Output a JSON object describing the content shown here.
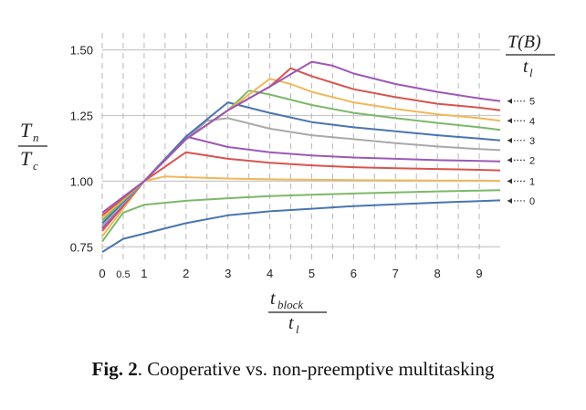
{
  "caption": {
    "label": "Fig. 2",
    "text": ". Cooperative vs. non-preemptive multitasking"
  },
  "chart_data": {
    "type": "line",
    "x_axis": {
      "label_num": "t",
      "label_num_sub": "block",
      "label_den": "t",
      "label_den_sub": "l",
      "ticks": [
        0,
        0.5,
        1,
        2,
        3,
        4,
        5,
        6,
        7,
        8,
        9
      ],
      "tick_labels": [
        "0",
        "0.5",
        "1",
        "2",
        "3",
        "4",
        "5",
        "6",
        "7",
        "8",
        "9"
      ],
      "range": [
        0,
        9.5
      ],
      "dashed_gridlines": [
        0,
        0.5,
        1,
        1.5,
        2,
        2.5,
        3,
        3.5,
        4,
        4.5,
        5,
        5.5,
        6,
        6.5,
        7,
        7.5,
        8,
        8.5,
        9
      ]
    },
    "y_axis": {
      "label_num": "T",
      "label_num_sub": "n",
      "label_den": "T",
      "label_den_sub": "c",
      "ticks": [
        0.75,
        1.0,
        1.25,
        1.5
      ],
      "tick_labels": [
        "0.75",
        "1.00",
        "1.25",
        "1.50"
      ],
      "range": [
        0.73,
        1.53
      ]
    },
    "legend_title": {
      "num": "T(B)",
      "den": "t",
      "den_sub": "l"
    },
    "right_labels": [
      {
        "text": "5",
        "y": 1.305
      },
      {
        "text": "4",
        "y": 1.23
      },
      {
        "text": "3",
        "y": 1.155
      },
      {
        "text": "2",
        "y": 1.08
      },
      {
        "text": "1",
        "y": 1.0
      },
      {
        "text": "0",
        "y": 0.925
      }
    ],
    "series": [
      {
        "color": "#4a74b0",
        "points": [
          [
            0,
            0.73
          ],
          [
            0.5,
            0.78
          ],
          [
            1,
            0.8
          ],
          [
            2,
            0.84
          ],
          [
            3,
            0.87
          ],
          [
            4,
            0.885
          ],
          [
            5,
            0.895
          ],
          [
            6,
            0.905
          ],
          [
            7,
            0.912
          ],
          [
            8,
            0.918
          ],
          [
            9,
            0.924
          ],
          [
            9.5,
            0.927
          ]
        ]
      },
      {
        "color": "#7cb86a",
        "points": [
          [
            0,
            0.77
          ],
          [
            0.5,
            0.88
          ],
          [
            1,
            0.91
          ],
          [
            2,
            0.925
          ],
          [
            3,
            0.935
          ],
          [
            4,
            0.943
          ],
          [
            5,
            0.948
          ],
          [
            6,
            0.953
          ],
          [
            7,
            0.957
          ],
          [
            8,
            0.961
          ],
          [
            9,
            0.964
          ],
          [
            9.5,
            0.966
          ]
        ]
      },
      {
        "color": "#f0b85a",
        "points": [
          [
            0,
            0.79
          ],
          [
            1,
            1.0
          ],
          [
            1.5,
            1.018
          ],
          [
            2,
            1.015
          ],
          [
            3,
            1.01
          ],
          [
            4,
            1.007
          ],
          [
            5,
            1.005
          ],
          [
            6,
            1.004
          ],
          [
            7,
            1.003
          ],
          [
            8,
            1.002
          ],
          [
            9,
            1.002
          ],
          [
            9.5,
            1.001
          ]
        ]
      },
      {
        "color": "#d9534f",
        "points": [
          [
            0,
            0.81
          ],
          [
            1,
            1.0
          ],
          [
            2,
            1.11
          ],
          [
            3,
            1.085
          ],
          [
            4,
            1.07
          ],
          [
            5,
            1.06
          ],
          [
            6,
            1.053
          ],
          [
            7,
            1.049
          ],
          [
            8,
            1.046
          ],
          [
            9,
            1.043
          ],
          [
            9.5,
            1.041
          ]
        ]
      },
      {
        "color": "#9b59b6",
        "points": [
          [
            0,
            0.82
          ],
          [
            1,
            1.0
          ],
          [
            2,
            1.17
          ],
          [
            3,
            1.13
          ],
          [
            4,
            1.11
          ],
          [
            5,
            1.098
          ],
          [
            6,
            1.09
          ],
          [
            7,
            1.085
          ],
          [
            8,
            1.08
          ],
          [
            9,
            1.077
          ],
          [
            9.5,
            1.075
          ]
        ]
      },
      {
        "color": "#a9a9a9",
        "points": [
          [
            0,
            0.83
          ],
          [
            1,
            1.0
          ],
          [
            2,
            1.16
          ],
          [
            2.5,
            1.23
          ],
          [
            3,
            1.24
          ],
          [
            4,
            1.2
          ],
          [
            5,
            1.175
          ],
          [
            6,
            1.16
          ],
          [
            7,
            1.145
          ],
          [
            8,
            1.132
          ],
          [
            9,
            1.122
          ],
          [
            9.5,
            1.118
          ]
        ]
      },
      {
        "color": "#4a74b0",
        "points": [
          [
            0,
            0.84
          ],
          [
            1,
            1.0
          ],
          [
            2,
            1.17
          ],
          [
            3,
            1.3
          ],
          [
            3.5,
            1.28
          ],
          [
            4,
            1.26
          ],
          [
            5,
            1.225
          ],
          [
            6,
            1.205
          ],
          [
            7,
            1.19
          ],
          [
            8,
            1.175
          ],
          [
            9,
            1.162
          ],
          [
            9.5,
            1.155
          ]
        ]
      },
      {
        "color": "#7cb86a",
        "points": [
          [
            0,
            0.85
          ],
          [
            1,
            1.0
          ],
          [
            2,
            1.16
          ],
          [
            3,
            1.27
          ],
          [
            3.5,
            1.345
          ],
          [
            4,
            1.33
          ],
          [
            5,
            1.29
          ],
          [
            6,
            1.26
          ],
          [
            7,
            1.24
          ],
          [
            8,
            1.222
          ],
          [
            9,
            1.205
          ],
          [
            9.5,
            1.195
          ]
        ]
      },
      {
        "color": "#f0b85a",
        "points": [
          [
            0,
            0.86
          ],
          [
            1,
            1.0
          ],
          [
            2,
            1.16
          ],
          [
            3,
            1.27
          ],
          [
            4,
            1.39
          ],
          [
            4.5,
            1.37
          ],
          [
            5,
            1.34
          ],
          [
            6,
            1.3
          ],
          [
            7,
            1.275
          ],
          [
            8,
            1.255
          ],
          [
            9,
            1.24
          ],
          [
            9.5,
            1.23
          ]
        ]
      },
      {
        "color": "#d9534f",
        "points": [
          [
            0,
            0.87
          ],
          [
            1,
            1.0
          ],
          [
            2,
            1.16
          ],
          [
            3,
            1.27
          ],
          [
            4,
            1.36
          ],
          [
            4.5,
            1.43
          ],
          [
            5,
            1.4
          ],
          [
            6,
            1.35
          ],
          [
            7,
            1.32
          ],
          [
            8,
            1.295
          ],
          [
            9,
            1.28
          ],
          [
            9.5,
            1.27
          ]
        ]
      },
      {
        "color": "#9b59b6",
        "points": [
          [
            0,
            0.88
          ],
          [
            1,
            1.0
          ],
          [
            2,
            1.16
          ],
          [
            3,
            1.27
          ],
          [
            4,
            1.36
          ],
          [
            5,
            1.455
          ],
          [
            5.5,
            1.44
          ],
          [
            6,
            1.41
          ],
          [
            7,
            1.37
          ],
          [
            8,
            1.34
          ],
          [
            9,
            1.315
          ],
          [
            9.5,
            1.305
          ]
        ]
      }
    ]
  }
}
